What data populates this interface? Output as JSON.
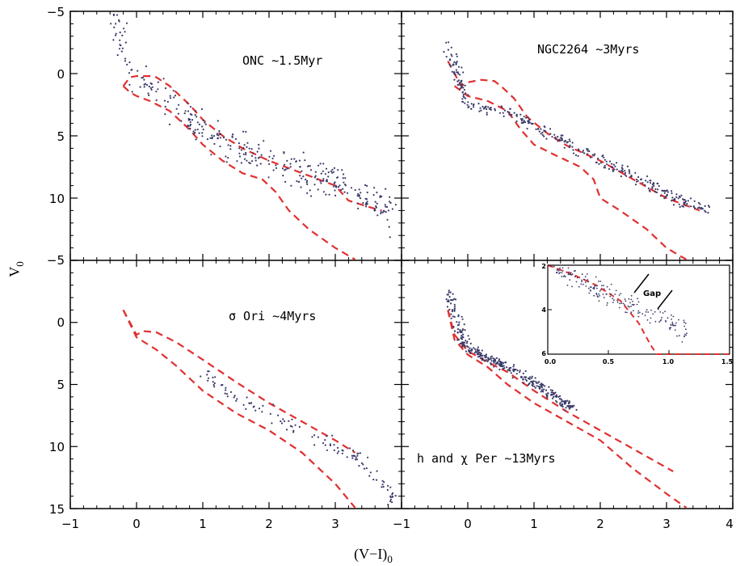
{
  "chart_data": {
    "type": "scatter",
    "xlabel": "(V−I)",
    "xlabel_sub": "0",
    "ylabel": "V",
    "ylabel_sub": "0",
    "colors": {
      "points": "#3a3a6a",
      "isochrone": "#e03030",
      "frame": "#000000"
    },
    "x_ticks": [
      "−1",
      "0",
      "1",
      "2",
      "3",
      "−1",
      "0",
      "1",
      "2",
      "3",
      "4"
    ],
    "y_ticks_top": [
      "−5",
      "0",
      "5",
      "10"
    ],
    "y_ticks_bottom": [
      "−5",
      "0",
      "5",
      "10",
      "15"
    ],
    "panels": [
      {
        "label": "ONC ~1.5Myr",
        "xlim": [
          -1,
          4
        ],
        "ylim": [
          -5,
          15
        ],
        "isochrones": [
          {
            "x": [
              -0.2,
              -0.1,
              0.0,
              0.1,
              0.2,
              0.3,
              0.5,
              0.8,
              1.0,
              1.3,
              1.6,
              2.0,
              2.5,
              3.0,
              3.2,
              3.5,
              3.7
            ],
            "y": [
              1.0,
              0.3,
              0.2,
              0.2,
              0.2,
              0.3,
              1.0,
              2.5,
              3.7,
              5.0,
              6.0,
              7.0,
              8.0,
              9.0,
              10.2,
              10.7,
              11.0
            ]
          },
          {
            "x": [
              -0.2,
              -0.1,
              0.0,
              0.2,
              0.5,
              0.8,
              1.0,
              1.3,
              1.6,
              1.9,
              2.1,
              2.3,
              2.6,
              3.0,
              3.3
            ],
            "y": [
              1.0,
              1.5,
              1.8,
              2.2,
              3.0,
              4.5,
              5.7,
              7.0,
              8.0,
              8.5,
              9.5,
              11.0,
              12.5,
              14.0,
              15.0
            ]
          }
        ],
        "stars": [
          {
            "x": [
              -0.3,
              -0.2,
              0.0,
              0.3,
              0.6,
              0.8,
              0.9,
              1.1,
              1.3,
              1.5,
              1.7,
              1.9,
              2.1,
              2.3,
              2.5,
              2.7,
              2.9,
              3.1,
              3.3,
              3.5,
              3.7,
              3.9
            ],
            "y": [
              -4.0,
              -1.5,
              0.5,
              1.5,
              2.8,
              3.5,
              4.2,
              4.8,
              5.3,
              5.8,
              6.2,
              6.7,
              7.1,
              7.5,
              7.9,
              8.3,
              8.6,
              9.0,
              9.5,
              10.0,
              10.5,
              11.5
            ]
          },
          {
            "scatter": 1.6
          }
        ]
      },
      {
        "label": "NGC2264 ~3Myrs",
        "xlim": [
          -1,
          4
        ],
        "ylim": [
          -5,
          15
        ],
        "isochrones": [
          {
            "x": [
              -0.3,
              -0.2,
              -0.1,
              0.0,
              0.2,
              0.4,
              0.5,
              0.7,
              0.9,
              1.2,
              1.5,
              2.0,
              2.5,
              3.0,
              3.5
            ],
            "y": [
              -1.0,
              0.0,
              1.0,
              0.7,
              0.5,
              0.6,
              1.0,
              2.0,
              3.5,
              4.8,
              5.8,
              7.0,
              8.5,
              10.0,
              11.0
            ]
          },
          {
            "x": [
              -0.2,
              0.0,
              0.3,
              0.6,
              0.8,
              1.0,
              1.3,
              1.7,
              1.9,
              2.0,
              2.3,
              2.7,
              3.0,
              3.3
            ],
            "y": [
              1.0,
              1.8,
              2.2,
              3.0,
              4.5,
              5.7,
              6.5,
              7.5,
              8.5,
              10.0,
              11.0,
              12.5,
              14.0,
              15.0
            ]
          }
        ],
        "stars": [
          {
            "x": [
              -0.3,
              -0.2,
              -0.1,
              0.0,
              0.3,
              0.6,
              0.9,
              1.2,
              1.5,
              1.8,
              2.1,
              2.4,
              2.7,
              3.0,
              3.3,
              3.6
            ],
            "y": [
              -2.5,
              -0.5,
              1.2,
              2.5,
              3.0,
              3.2,
              3.8,
              4.7,
              5.6,
              6.4,
              7.2,
              8.0,
              8.8,
              9.6,
              10.3,
              11.0
            ]
          },
          {
            "scatter": 0.6
          }
        ]
      },
      {
        "label": "σ Ori ~4Myrs",
        "xlim": [
          -1,
          4
        ],
        "ylim": [
          -5,
          15
        ],
        "isochrones": [
          {
            "x": [
              -0.2,
              -0.1,
              0.0,
              0.1,
              0.3,
              0.6,
              1.0,
              1.5,
              2.0,
              2.5,
              3.0,
              3.3
            ],
            "y": [
              -1.0,
              0.0,
              1.0,
              0.7,
              0.8,
              1.6,
              3.0,
              4.8,
              6.5,
              8.0,
              9.5,
              10.5
            ]
          },
          {
            "x": [
              -0.2,
              0.0,
              0.3,
              0.6,
              1.0,
              1.5,
              2.0,
              2.5,
              3.0,
              3.3
            ],
            "y": [
              -1.0,
              1.2,
              2.2,
              3.5,
              5.5,
              7.3,
              8.7,
              10.5,
              13.0,
              15.0
            ]
          }
        ],
        "stars": [
          {
            "x": [
              1.0,
              1.3,
              1.6,
              1.9,
              2.2,
              2.5,
              2.8,
              3.0,
              3.2,
              3.4,
              3.6,
              3.8,
              3.9
            ],
            "y": [
              4.2,
              5.4,
              6.3,
              7.0,
              7.9,
              8.8,
              9.6,
              10.1,
              10.6,
              11.3,
              12.5,
              13.6,
              14.8
            ]
          },
          {
            "scatter": 0.7
          }
        ]
      },
      {
        "label": "h and χ Per ~13Myrs",
        "xlim": [
          -1,
          4
        ],
        "ylim": [
          -5,
          15
        ],
        "isochrones": [
          {
            "x": [
              -0.3,
              -0.2,
              0.0,
              0.3,
              0.6,
              1.0,
              1.5,
              2.0,
              2.5,
              3.1
            ],
            "y": [
              -1.0,
              1.0,
              2.3,
              3.2,
              4.0,
              5.5,
              7.2,
              8.7,
              10.2,
              12.0
            ]
          },
          {
            "x": [
              -0.3,
              -0.2,
              0.0,
              0.3,
              0.6,
              1.0,
              1.5,
              2.0,
              2.5,
              3.0,
              3.3
            ],
            "y": [
              -1.0,
              1.4,
              2.6,
              3.6,
              5.0,
              6.5,
              8.0,
              9.5,
              11.8,
              13.8,
              15.0
            ]
          }
        ],
        "stars": [
          {
            "x": [
              -0.3,
              -0.2,
              -0.1,
              0.0,
              0.2,
              0.4,
              0.6,
              0.8,
              1.0,
              1.2,
              1.4,
              1.6
            ],
            "y": [
              -2.5,
              -0.5,
              1.0,
              2.0,
              2.6,
              3.1,
              3.6,
              4.3,
              4.9,
              5.6,
              6.3,
              7.0
            ]
          },
          {
            "scatter": 0.4
          }
        ],
        "inset": {
          "xlim": [
            0,
            1.5
          ],
          "ylim": [
            2,
            6
          ],
          "x_ticks": [
            "0.0",
            "0.5",
            "1.0",
            "1.5"
          ],
          "y_ticks": [
            "2",
            "4",
            "6"
          ],
          "annotation": "Gap",
          "isochrone": {
            "x": [
              0.0,
              0.2,
              0.4,
              0.6,
              0.75,
              0.85,
              0.9,
              1.0,
              1.5
            ],
            "y": [
              2.0,
              2.4,
              2.9,
              3.6,
              4.6,
              5.6,
              6.0,
              6.0,
              6.0
            ]
          }
        }
      }
    ]
  }
}
